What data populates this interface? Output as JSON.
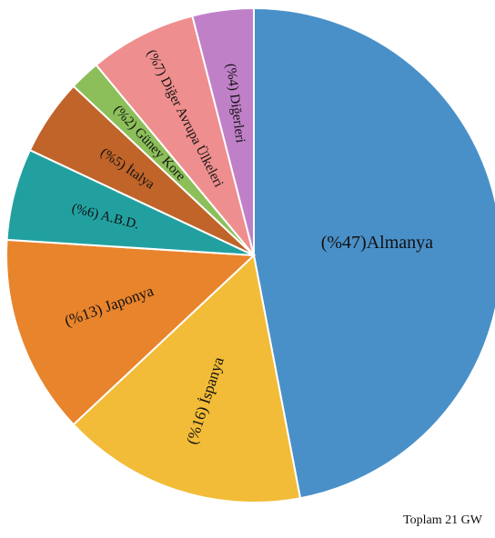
{
  "chart_data": {
    "type": "pie",
    "categories": [
      "(%47)Almanya",
      "(%16) İspanya",
      "(%13) Japonya",
      "(%6) A.B.D.",
      "(%5) İtalya",
      "(%2) Güney Kore",
      "(%7) Diğer Avrupa Ülkeleri",
      "(%4) Diğerleri"
    ],
    "values": [
      47,
      16,
      13,
      6,
      5,
      2,
      7,
      4
    ],
    "colors": [
      "#4a90c8",
      "#f2bc38",
      "#e8842c",
      "#22a0a0",
      "#c0642a",
      "#8cbf5a",
      "#ef8e8e",
      "#c080c8"
    ],
    "annotation": "Toplam 21 GW"
  }
}
